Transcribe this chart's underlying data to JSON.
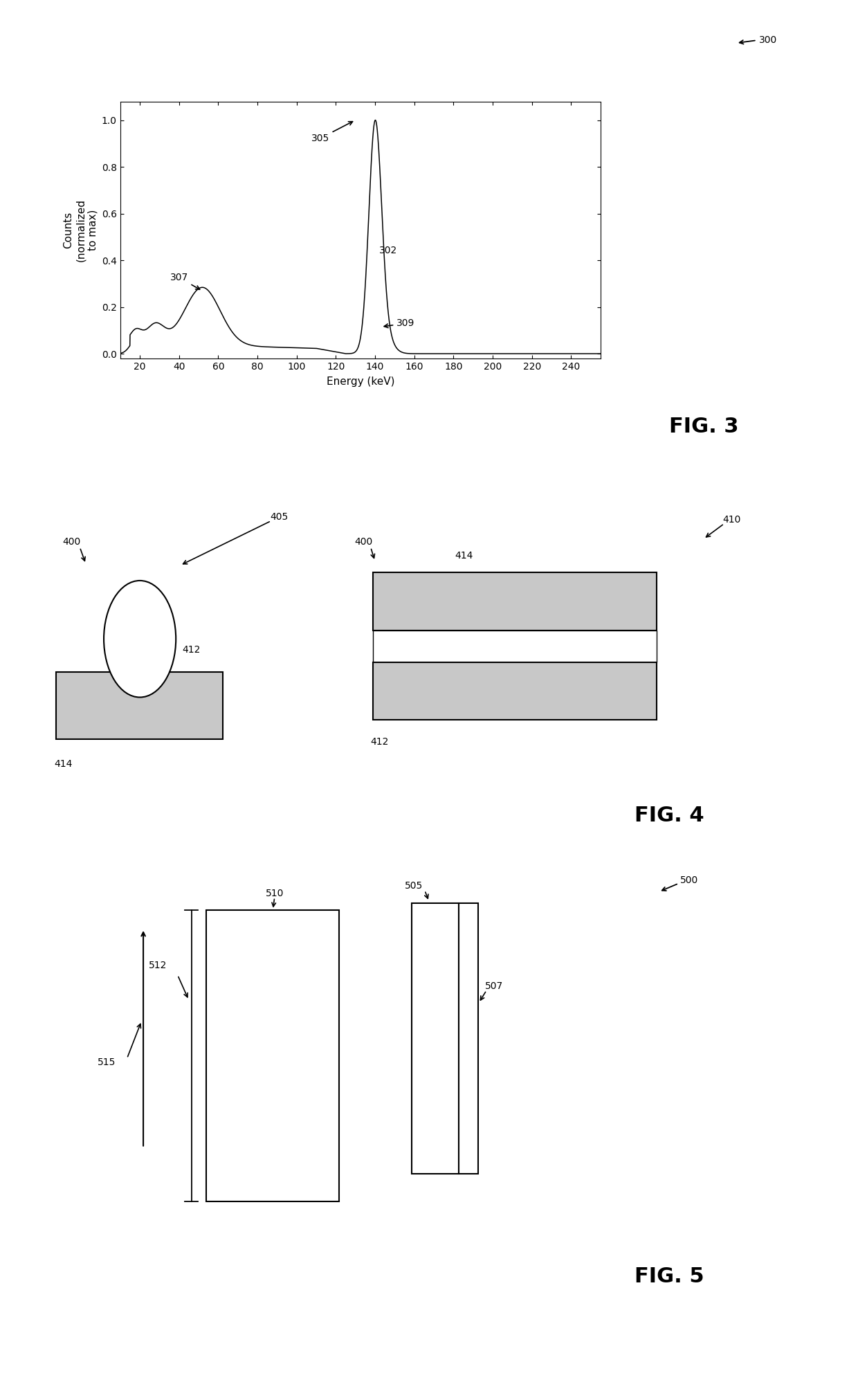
{
  "bg_color": "#ffffff",
  "fig_width": 12.4,
  "fig_height": 20.07,
  "fig3": {
    "xlabel": "Energy (keV)",
    "ylabel": "Counts\n(normalized\nto max)",
    "xlim": [
      10,
      255
    ],
    "ylim": [
      -0.02,
      1.08
    ],
    "xticks": [
      20,
      40,
      60,
      80,
      100,
      120,
      140,
      160,
      180,
      200,
      220,
      240
    ],
    "yticks": [
      0,
      0.2,
      0.4,
      0.6,
      0.8,
      1.0
    ]
  }
}
